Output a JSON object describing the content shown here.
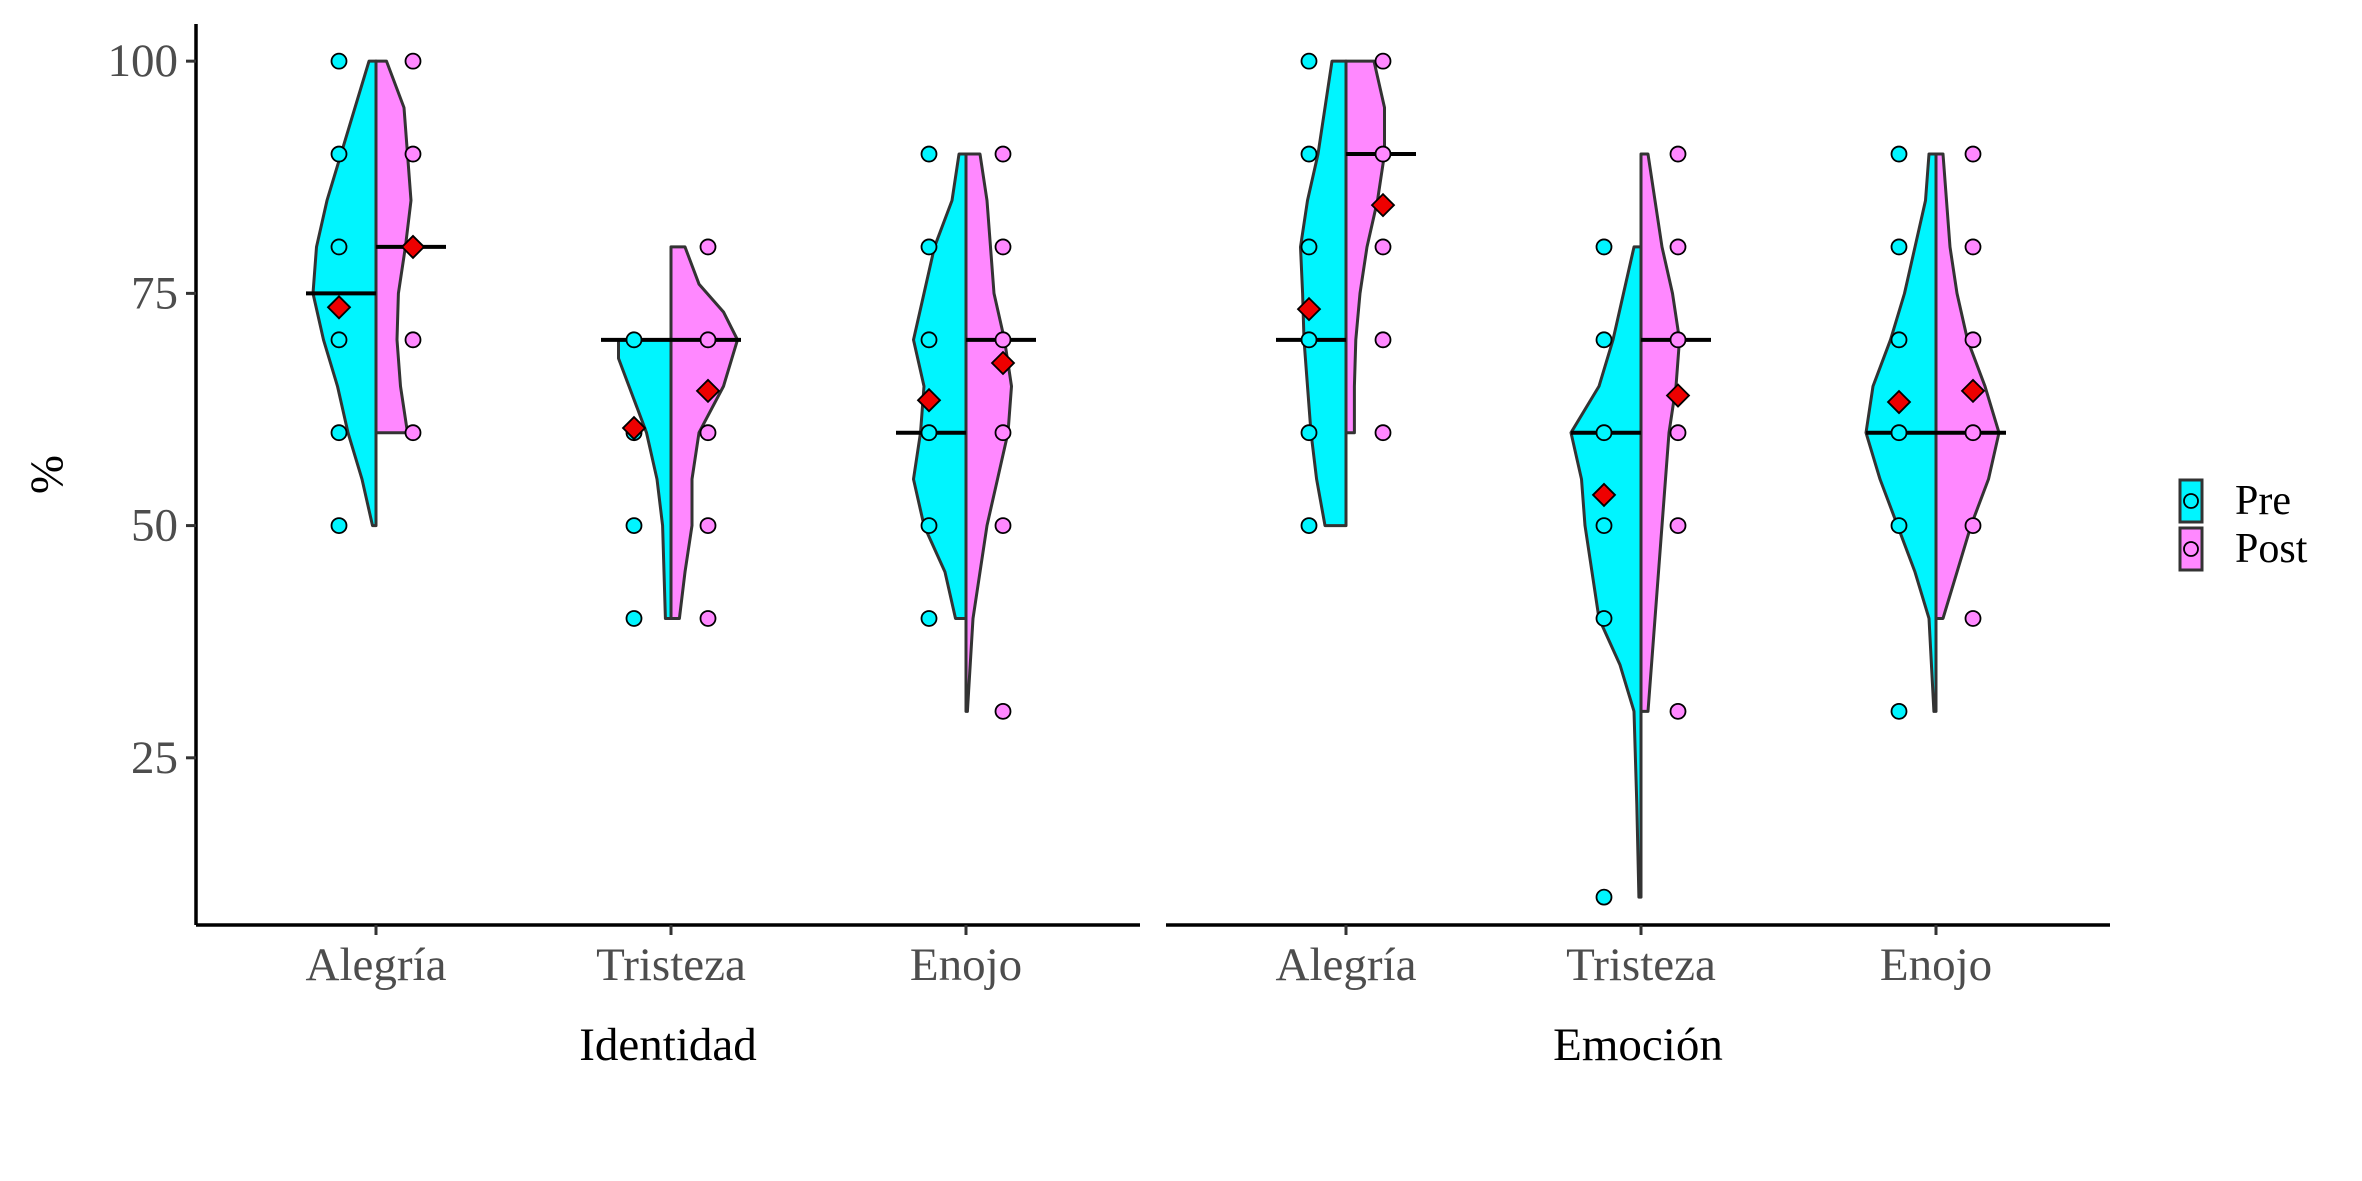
{
  "chart_data": {
    "type": "split-violin",
    "ylabel": "%",
    "yticks": [
      25,
      50,
      75,
      100
    ],
    "ylim": [
      7,
      104
    ],
    "legend": {
      "placement": "right",
      "entries": [
        {
          "name": "Pre",
          "color": "#00F5FF"
        },
        {
          "name": "Post",
          "color": "#FF88FF"
        }
      ]
    },
    "panels": [
      {
        "xlabel": "Identidad",
        "categories": [
          "Alegría",
          "Tristeza",
          "Enojo"
        ],
        "groups": [
          {
            "category": "Alegría",
            "pre": {
              "points": [
                100,
                90,
                80,
                70,
                60,
                50
              ],
              "median": 75,
              "mean": 73.5,
              "range": [
                50,
                100
              ],
              "density": [
                [
                  50,
                  0.05
                ],
                [
                  55,
                  0.2
                ],
                [
                  60,
                  0.4
                ],
                [
                  65,
                  0.55
                ],
                [
                  70,
                  0.75
                ],
                [
                  75,
                  0.9
                ],
                [
                  80,
                  0.85
                ],
                [
                  85,
                  0.7
                ],
                [
                  90,
                  0.5
                ],
                [
                  95,
                  0.3
                ],
                [
                  100,
                  0.1
                ]
              ]
            },
            "post": {
              "points": [
                100,
                90,
                70,
                60
              ],
              "median": 80,
              "mean": 80,
              "range": [
                60,
                100
              ],
              "density": [
                [
                  60,
                  0.45
                ],
                [
                  65,
                  0.35
                ],
                [
                  70,
                  0.3
                ],
                [
                  75,
                  0.32
                ],
                [
                  80,
                  0.42
                ],
                [
                  85,
                  0.5
                ],
                [
                  90,
                  0.45
                ],
                [
                  95,
                  0.4
                ],
                [
                  100,
                  0.15
                ]
              ]
            }
          },
          {
            "category": "Tristeza",
            "pre": {
              "points": [
                70,
                60,
                50,
                40
              ],
              "median": 70,
              "mean": 60.5,
              "range": [
                40,
                70
              ],
              "density": [
                [
                  40,
                  0.08
                ],
                [
                  45,
                  0.1
                ],
                [
                  50,
                  0.12
                ],
                [
                  55,
                  0.2
                ],
                [
                  60,
                  0.35
                ],
                [
                  65,
                  0.6
                ],
                [
                  68,
                  0.75
                ],
                [
                  70,
                  0.75
                ]
              ]
            },
            "post": {
              "points": [
                80,
                70,
                60,
                50,
                40
              ],
              "median": 70,
              "mean": 64.5,
              "range": [
                40,
                80
              ],
              "density": [
                [
                  40,
                  0.12
                ],
                [
                  45,
                  0.2
                ],
                [
                  50,
                  0.3
                ],
                [
                  55,
                  0.3
                ],
                [
                  60,
                  0.4
                ],
                [
                  65,
                  0.75
                ],
                [
                  70,
                  0.95
                ],
                [
                  73,
                  0.75
                ],
                [
                  76,
                  0.4
                ],
                [
                  80,
                  0.2
                ]
              ]
            }
          },
          {
            "category": "Enojo",
            "pre": {
              "points": [
                90,
                80,
                70,
                60,
                50,
                40
              ],
              "median": 60,
              "mean": 63.5,
              "range": [
                40,
                90
              ],
              "density": [
                [
                  40,
                  0.15
                ],
                [
                  45,
                  0.3
                ],
                [
                  50,
                  0.6
                ],
                [
                  55,
                  0.75
                ],
                [
                  60,
                  0.65
                ],
                [
                  65,
                  0.6
                ],
                [
                  70,
                  0.75
                ],
                [
                  75,
                  0.6
                ],
                [
                  80,
                  0.45
                ],
                [
                  85,
                  0.2
                ],
                [
                  90,
                  0.1
                ]
              ]
            },
            "post": {
              "points": [
                90,
                80,
                70,
                60,
                50,
                30
              ],
              "median": 70,
              "mean": 67.5,
              "range": [
                30,
                90
              ],
              "density": [
                [
                  30,
                  0.02
                ],
                [
                  40,
                  0.1
                ],
                [
                  50,
                  0.3
                ],
                [
                  55,
                  0.45
                ],
                [
                  60,
                  0.6
                ],
                [
                  65,
                  0.65
                ],
                [
                  70,
                  0.55
                ],
                [
                  75,
                  0.4
                ],
                [
                  80,
                  0.35
                ],
                [
                  85,
                  0.3
                ],
                [
                  90,
                  0.2
                ]
              ]
            }
          }
        ]
      },
      {
        "xlabel": "Emoción",
        "categories": [
          "Alegría",
          "Tristeza",
          "Enojo"
        ],
        "groups": [
          {
            "category": "Alegría",
            "pre": {
              "points": [
                100,
                90,
                80,
                70,
                60,
                50
              ],
              "median": 70,
              "mean": 73.3,
              "range": [
                50,
                100
              ],
              "density": [
                [
                  50,
                  0.3
                ],
                [
                  55,
                  0.42
                ],
                [
                  60,
                  0.5
                ],
                [
                  65,
                  0.55
                ],
                [
                  70,
                  0.6
                ],
                [
                  75,
                  0.62
                ],
                [
                  80,
                  0.65
                ],
                [
                  85,
                  0.55
                ],
                [
                  90,
                  0.4
                ],
                [
                  95,
                  0.3
                ],
                [
                  100,
                  0.2
                ]
              ]
            },
            "post": {
              "points": [
                100,
                90,
                80,
                70,
                60
              ],
              "median": 90,
              "mean": 84.5,
              "range": [
                60,
                100
              ],
              "density": [
                [
                  60,
                  0.12
                ],
                [
                  65,
                  0.12
                ],
                [
                  70,
                  0.14
                ],
                [
                  75,
                  0.2
                ],
                [
                  80,
                  0.3
                ],
                [
                  85,
                  0.45
                ],
                [
                  90,
                  0.55
                ],
                [
                  95,
                  0.55
                ],
                [
                  100,
                  0.4
                ]
              ]
            }
          },
          {
            "category": "Tristeza",
            "pre": {
              "points": [
                80,
                70,
                60,
                50,
                40,
                10
              ],
              "median": 60,
              "mean": 53.3,
              "range": [
                10,
                80
              ],
              "density": [
                [
                  10,
                  0.03
                ],
                [
                  20,
                  0.06
                ],
                [
                  30,
                  0.1
                ],
                [
                  35,
                  0.3
                ],
                [
                  40,
                  0.6
                ],
                [
                  45,
                  0.7
                ],
                [
                  50,
                  0.8
                ],
                [
                  55,
                  0.85
                ],
                [
                  60,
                  1.0
                ],
                [
                  65,
                  0.6
                ],
                [
                  70,
                  0.4
                ],
                [
                  75,
                  0.25
                ],
                [
                  80,
                  0.1
                ]
              ]
            },
            "post": {
              "points": [
                90,
                80,
                70,
                60,
                50,
                30
              ],
              "median": 70,
              "mean": 64,
              "range": [
                30,
                90
              ],
              "density": [
                [
                  30,
                  0.1
                ],
                [
                  40,
                  0.2
                ],
                [
                  50,
                  0.3
                ],
                [
                  55,
                  0.35
                ],
                [
                  60,
                  0.4
                ],
                [
                  65,
                  0.5
                ],
                [
                  70,
                  0.55
                ],
                [
                  75,
                  0.45
                ],
                [
                  80,
                  0.3
                ],
                [
                  85,
                  0.2
                ],
                [
                  90,
                  0.1
                ]
              ]
            }
          },
          {
            "category": "Enojo",
            "pre": {
              "points": [
                90,
                80,
                70,
                60,
                50,
                30
              ],
              "median": 60,
              "mean": 63.3,
              "range": [
                30,
                90
              ],
              "density": [
                [
                  30,
                  0.03
                ],
                [
                  40,
                  0.1
                ],
                [
                  45,
                  0.3
                ],
                [
                  50,
                  0.55
                ],
                [
                  55,
                  0.8
                ],
                [
                  60,
                  1.0
                ],
                [
                  65,
                  0.9
                ],
                [
                  70,
                  0.65
                ],
                [
                  75,
                  0.45
                ],
                [
                  80,
                  0.3
                ],
                [
                  85,
                  0.15
                ],
                [
                  90,
                  0.1
                ]
              ]
            },
            "post": {
              "points": [
                90,
                80,
                70,
                60,
                50,
                40
              ],
              "median": 60,
              "mean": 64.5,
              "range": [
                40,
                90
              ],
              "density": [
                [
                  40,
                  0.1
                ],
                [
                  45,
                  0.3
                ],
                [
                  50,
                  0.5
                ],
                [
                  55,
                  0.75
                ],
                [
                  60,
                  0.9
                ],
                [
                  65,
                  0.7
                ],
                [
                  70,
                  0.45
                ],
                [
                  75,
                  0.3
                ],
                [
                  80,
                  0.2
                ],
                [
                  85,
                  0.15
                ],
                [
                  90,
                  0.1
                ]
              ]
            }
          }
        ]
      }
    ]
  }
}
